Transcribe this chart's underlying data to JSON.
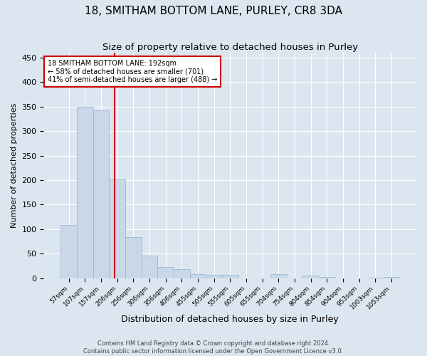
{
  "title": "18, SMITHAM BOTTOM LANE, PURLEY, CR8 3DA",
  "subtitle": "Size of property relative to detached houses in Purley",
  "xlabel": "Distribution of detached houses by size in Purley",
  "ylabel": "Number of detached properties",
  "footer_line1": "Contains HM Land Registry data © Crown copyright and database right 2024.",
  "footer_line2": "Contains public sector information licensed under the Open Government Licence v3.0.",
  "bin_labels": [
    "57sqm",
    "107sqm",
    "157sqm",
    "206sqm",
    "256sqm",
    "306sqm",
    "356sqm",
    "406sqm",
    "455sqm",
    "505sqm",
    "555sqm",
    "605sqm",
    "655sqm",
    "704sqm",
    "754sqm",
    "804sqm",
    "854sqm",
    "904sqm",
    "953sqm",
    "1003sqm",
    "1053sqm"
  ],
  "bar_heights": [
    109,
    350,
    342,
    202,
    83,
    46,
    22,
    19,
    8,
    6,
    6,
    0,
    0,
    8,
    0,
    5,
    3,
    0,
    0,
    1,
    2
  ],
  "bar_color": "#c8d8e8",
  "bar_edgecolor": "#a0b8d0",
  "vline_x_index": 2.84,
  "vline_color": "#cc0000",
  "annotation_text": "18 SMITHAM BOTTOM LANE: 192sqm\n← 58% of detached houses are smaller (701)\n41% of semi-detached houses are larger (488) →",
  "annotation_box_color": "white",
  "annotation_box_edgecolor": "#cc0000",
  "ylim": [
    0,
    460
  ],
  "yticks": [
    0,
    50,
    100,
    150,
    200,
    250,
    300,
    350,
    400,
    450
  ],
  "background_color": "#dce6f0",
  "plot_background": "#dce6f0",
  "grid_color": "white",
  "title_fontsize": 11,
  "subtitle_fontsize": 9.5,
  "xlabel_fontsize": 9,
  "ylabel_fontsize": 8
}
